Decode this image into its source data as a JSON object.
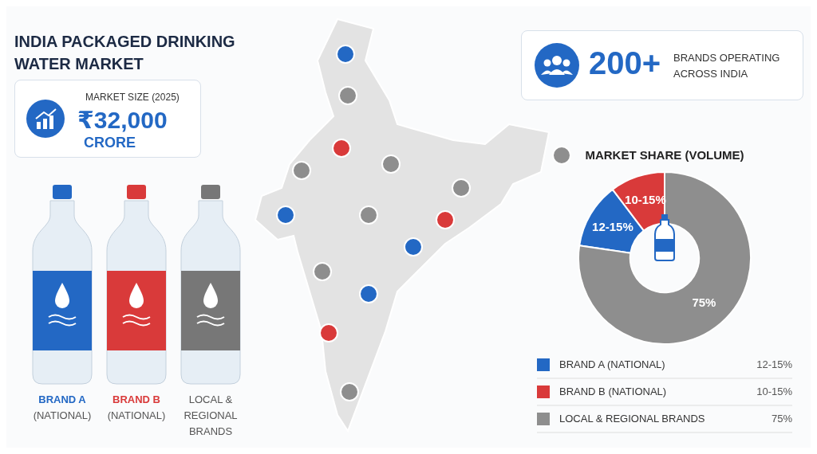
{
  "chart_data": {
    "type": "donut",
    "title": "INDIA PACKAGED DRINKING WATER MARKET",
    "subtitle": "MARKET SHARE (VOLUME)",
    "categories": [
      "BRAND A (NATIONAL)",
      "BRAND B (NATIONAL)",
      "LOCAL & REGIONAL BRANDS"
    ],
    "values": [
      12,
      10,
      75
    ],
    "colors": [
      "#2368c4",
      "#d93a3a",
      "#8e8e8e"
    ],
    "value_labels": [
      "12-15%",
      "10-15%",
      "75%"
    ],
    "legend": "bottom",
    "annotations": [
      "MARKET SIZE (2025)",
      "₹32,000",
      "CRORE",
      "200+",
      "BRANDS OPERATING ACROSS INDIA",
      "BRAND A",
      "(NATIONAL)",
      "BRAND B",
      "(NATIONAL)",
      "LOCAL & REGIONAL BRANDS"
    ]
  }
}
